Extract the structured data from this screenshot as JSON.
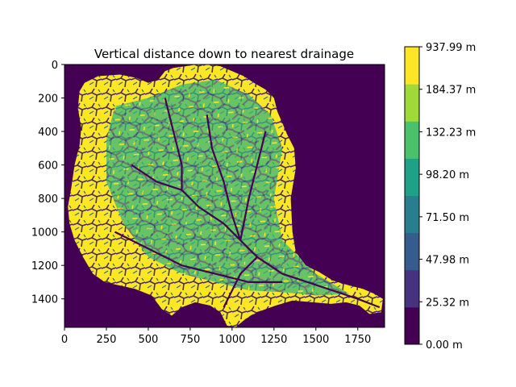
{
  "chart_data": {
    "type": "heatmap",
    "title": "Vertical distance down to nearest drainage",
    "xlabel": "",
    "ylabel": "",
    "x_ticks": [
      "0",
      "250",
      "500",
      "750",
      "1000",
      "1250",
      "1500",
      "1750"
    ],
    "y_ticks": [
      "0",
      "200",
      "400",
      "600",
      "800",
      "1000",
      "1200",
      "1400"
    ],
    "xlim": [
      0,
      1910
    ],
    "ylim": [
      1570,
      0
    ],
    "colorbar": {
      "bins": [
        {
          "label": "0.00 m",
          "color": "#440154"
        },
        {
          "label": "25.32 m",
          "color": "#46327e"
        },
        {
          "label": "47.98 m",
          "color": "#365c8d"
        },
        {
          "label": "71.50 m",
          "color": "#277f8e"
        },
        {
          "label": "98.20 m",
          "color": "#1fa187"
        },
        {
          "label": "132.23 m",
          "color": "#4ac16d"
        },
        {
          "label": "184.37 m",
          "color": "#a0da39"
        },
        {
          "label": "937.99 m",
          "color": "#fde725"
        }
      ],
      "tick_labels": [
        "0.00 m",
        "25.32 m",
        "47.98 m",
        "71.50 m",
        "98.20 m",
        "132.23 m",
        "184.37 m",
        "937.99 m"
      ]
    },
    "grid": false,
    "colors": {
      "background": "#440154",
      "basin_light": "#fde725",
      "basin_mid": "#277f8e",
      "basin_dark": "#3b528b"
    }
  }
}
